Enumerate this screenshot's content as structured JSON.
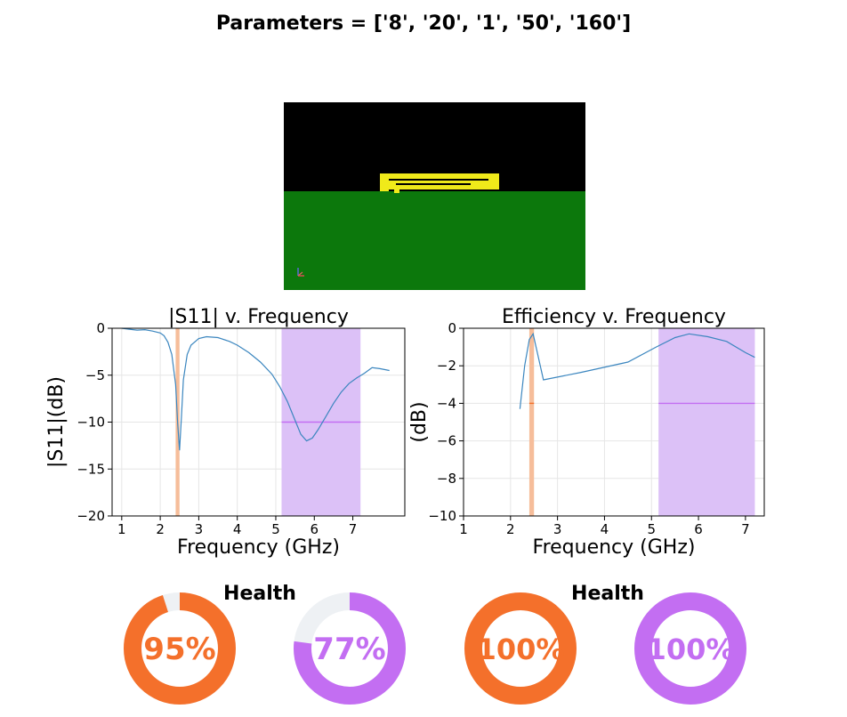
{
  "header": {
    "title": "Parameters = ['8', '20', '1', '50', '160']"
  },
  "colors": {
    "line": "#3b86bf",
    "band_low": "#f6bd9a",
    "band_high": "#dcc1f7",
    "target_low": "#f4702b",
    "target_high": "#c36ef2",
    "donut_track": "#eef1f4",
    "ground": "#0c780c",
    "trace": "#f0ea1a"
  },
  "health": {
    "left": {
      "label": "Health",
      "low_value": 95,
      "low_text": "95%",
      "high_value": 77,
      "high_text": "77%"
    },
    "right": {
      "label": "Health",
      "low_value": 100,
      "low_text": "100%",
      "high_value": 100,
      "high_text": "100%"
    }
  },
  "chart_data": [
    {
      "type": "line",
      "title": "|S11| v. Frequency",
      "xlabel": "Frequency (GHz)",
      "ylabel": "|S11|(dB)",
      "xlim": [
        0.75,
        8.35
      ],
      "ylim": [
        -20,
        0
      ],
      "xticks": [
        1,
        2,
        3,
        4,
        5,
        6,
        7
      ],
      "yticks": [
        0,
        -5,
        -10,
        -15,
        -20
      ],
      "grid": true,
      "bands": [
        {
          "x0": 2.4,
          "x1": 2.5,
          "color": "band_low"
        },
        {
          "x0": 5.15,
          "x1": 7.2,
          "color": "band_high"
        }
      ],
      "target_lines": [
        {
          "x0": 5.15,
          "x1": 7.2,
          "y": -10,
          "color": "target_high"
        }
      ],
      "series": [
        {
          "x": [
            1.0,
            1.2,
            1.4,
            1.6,
            1.8,
            2.0,
            2.1,
            2.2,
            2.3,
            2.4,
            2.45,
            2.5,
            2.55,
            2.6,
            2.7,
            2.8,
            3.0,
            3.2,
            3.5,
            3.8,
            4.0,
            4.3,
            4.6,
            4.9,
            5.1,
            5.3,
            5.5,
            5.65,
            5.8,
            5.95,
            6.1,
            6.3,
            6.5,
            6.7,
            6.9,
            7.1,
            7.3,
            7.5,
            7.7,
            7.95
          ],
          "y": [
            0.0,
            -0.1,
            -0.2,
            -0.15,
            -0.3,
            -0.5,
            -0.8,
            -1.5,
            -2.8,
            -6.0,
            -10.0,
            -13.0,
            -9.5,
            -5.5,
            -2.8,
            -1.8,
            -1.1,
            -0.9,
            -1.0,
            -1.4,
            -1.8,
            -2.6,
            -3.6,
            -4.9,
            -6.2,
            -7.8,
            -9.8,
            -11.3,
            -12.0,
            -11.7,
            -10.8,
            -9.4,
            -8.0,
            -6.8,
            -5.9,
            -5.3,
            -4.8,
            -4.2,
            -4.3,
            -4.5
          ]
        }
      ]
    },
    {
      "type": "line",
      "title": "Efficiency v. Frequency",
      "xlabel": "Frequency (GHz)",
      "ylabel": "(dB)",
      "xlim": [
        1,
        7.4
      ],
      "ylim": [
        -10,
        0
      ],
      "xticks": [
        1,
        2,
        3,
        4,
        5,
        6,
        7
      ],
      "yticks": [
        0,
        -2,
        -4,
        -6,
        -8,
        -10
      ],
      "grid": true,
      "bands": [
        {
          "x0": 2.4,
          "x1": 2.5,
          "color": "band_low"
        },
        {
          "x0": 5.15,
          "x1": 7.2,
          "color": "band_high"
        }
      ],
      "target_lines": [
        {
          "x0": 2.4,
          "x1": 2.5,
          "y": -4,
          "color": "target_low"
        },
        {
          "x0": 5.15,
          "x1": 7.2,
          "y": -4,
          "color": "target_high"
        }
      ],
      "series": [
        {
          "x": [
            2.2,
            2.3,
            2.4,
            2.48,
            2.58,
            2.7,
            3.5,
            4.5,
            5.1,
            5.5,
            5.8,
            6.2,
            6.6,
            7.0,
            7.2
          ],
          "y": [
            -4.3,
            -2.0,
            -0.6,
            -0.3,
            -1.4,
            -2.75,
            -2.35,
            -1.8,
            -1.0,
            -0.5,
            -0.3,
            -0.45,
            -0.7,
            -1.3,
            -1.55
          ]
        }
      ]
    }
  ]
}
